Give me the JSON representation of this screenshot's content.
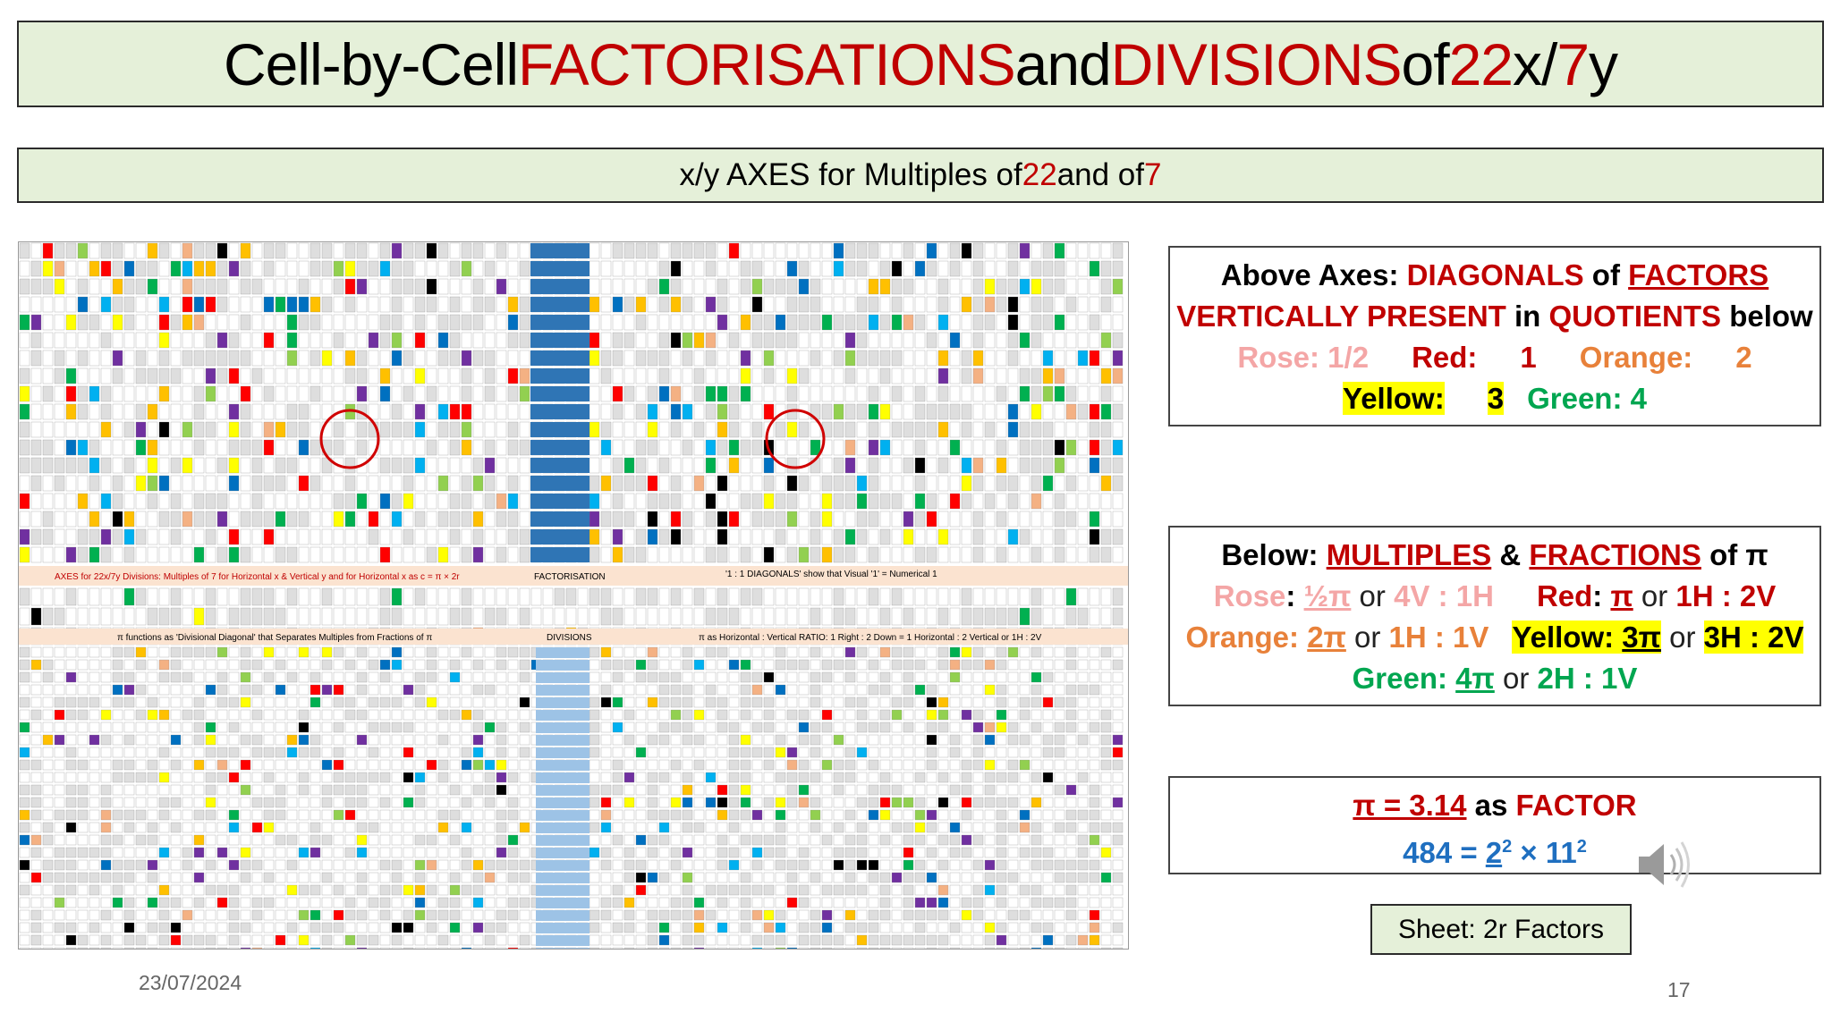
{
  "title": {
    "part1": "Cell-by-Cell ",
    "part2": "FACTORISATIONS",
    "part3": " and ",
    "part4": "DIVISIONS",
    "part5": " of ",
    "part6": "22",
    "part7": "x/",
    "part8": "7",
    "part9": "y"
  },
  "axes_banner": {
    "part1": "x/y AXES for Multiples of ",
    "part2": "22",
    "part3": " and of ",
    "part4": "7"
  },
  "box_above": {
    "l1a": "Above Axes: ",
    "l1b": "DIAGONALS",
    "l1c": " of ",
    "l1d": "FACTORS",
    "l2a": "VERTICALLY PRESENT",
    "l2b": " in ",
    "l2c": "QUOTIENTS",
    "l2d": " below",
    "l3_rose": "Rose: 1/2",
    "l3_red": "Red:",
    "l3_red_val": "1",
    "l3_orange": "Orange:",
    "l3_orange_val": "2",
    "l4_yellow": "Yellow:",
    "l4_yellow_val": "3",
    "l4_green": "Green: 4"
  },
  "box_below": {
    "l1a": "Below: ",
    "l1b": "MULTIPLES",
    "l1c": " & ",
    "l1d": "FRACTIONS",
    "l1e": " of π",
    "l2_rose": "Rose",
    "l2_rose_val": "½π",
    "l2_or1": " or ",
    "l2_rose_ratio": "4V : 1H",
    "l2_red": "Red",
    "l2_red_val": "π",
    "l2_or2": " or ",
    "l2_red_ratio": "1H : 2V",
    "l3_orange": "Orange",
    "l3_orange_val": "2π",
    "l3_or1": " or ",
    "l3_orange_ratio": "1H : 1V",
    "l3_yellow": "Yellow",
    "l3_yellow_val": "3π",
    "l3_or2": " or ",
    "l3_yellow_ratio": "3H : 2V",
    "l4_green": "Green",
    "l4_green_val": "4π",
    "l4_or": " or ",
    "l4_green_ratio": "2H : 1V"
  },
  "box_pi": {
    "l1a": "π = 3.14",
    "l1b": " as ",
    "l1c": "FACTOR",
    "l2a": "484 = ",
    "l2b": "2",
    "l2c": "2",
    "l2d": " × 11",
    "l2e": "2"
  },
  "spreadsheet": {
    "axis_row_text": "AXES for 22x/7y Divisions: Multiples of 7 for Horizontal x & Vertical y and for Horizontal x as c = π × 2r",
    "factorisation_label": "FACTORISATION",
    "diagonals_text": "'1 : 1 DIAGONALS' show that Visual '1' = Numerical 1",
    "pi_functions_text": "π functions as 'Divisional Diagonal' that Separates Multiples from Fractions of π",
    "divisions_label": "DIVISIONS",
    "ratio_text": "π as Horizontal : Vertical RATIO: 1 Right : 2 Down = 1 Horizontal : 2 Vertical or 1H : 2V"
  },
  "sheet_label": "Sheet: 2r Factors",
  "date": "23/07/2024",
  "page_number": "17",
  "colors": {
    "red": "#c00000",
    "rose": "#f4a6a6",
    "orange": "#e8813a",
    "yellow": "#ffff00",
    "green": "#00a650",
    "blue": "#1f6fc0",
    "banner_bg": "#e5f0d9"
  },
  "icons": {
    "speaker": "speaker-icon"
  }
}
